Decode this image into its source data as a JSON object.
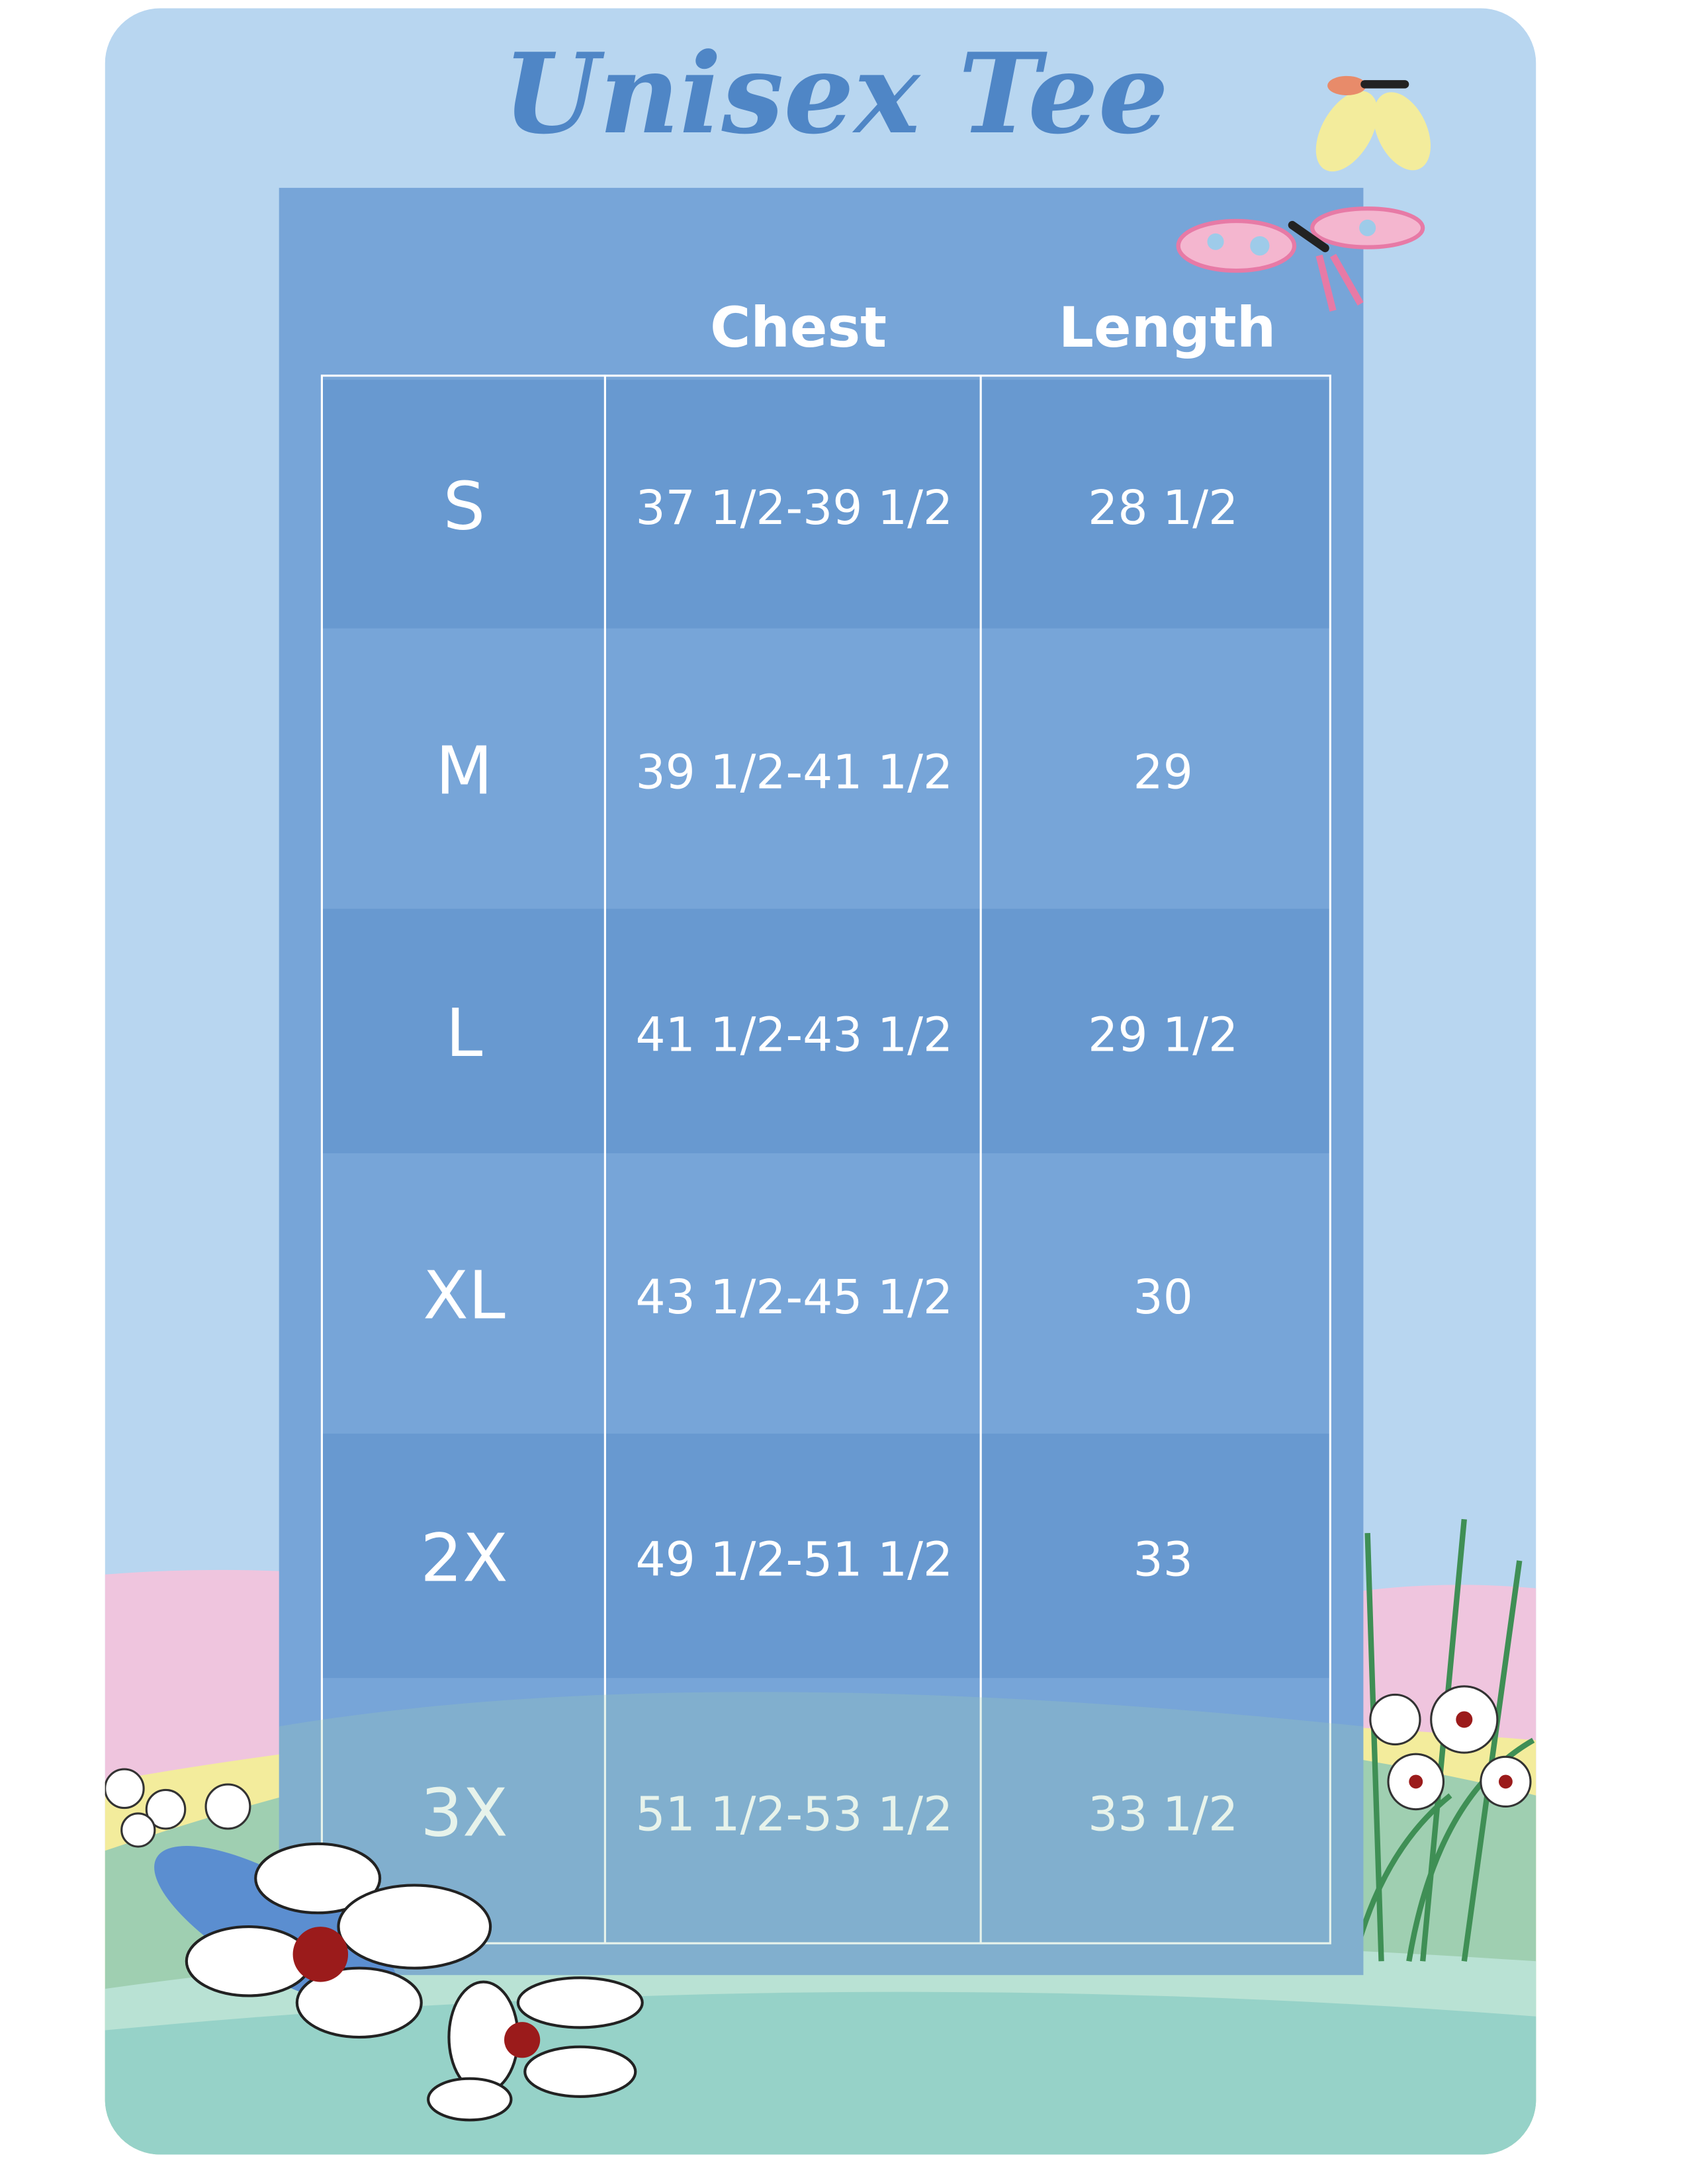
{
  "title": "Unisex Tee",
  "table": {
    "headers": [
      "Chest",
      "Length"
    ],
    "rows": [
      [
        "S",
        "37 1/2-39 1/2",
        "28 1/2"
      ],
      [
        "M",
        "39 1/2-41 1/2",
        "29"
      ],
      [
        "L",
        "41 1/2-43 1/2",
        "29 1/2"
      ],
      [
        "XL",
        "43 1/2-45 1/2",
        "30"
      ],
      [
        "2X",
        "49 1/2-51 1/2",
        "33"
      ],
      [
        "3X",
        "51 1/2-53 1/2",
        "33 1/2"
      ]
    ]
  }
}
